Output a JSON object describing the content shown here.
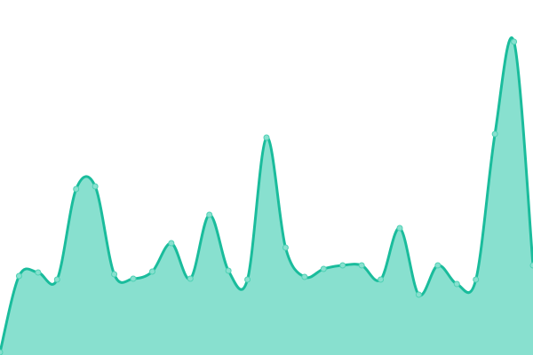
{
  "chart_data": {
    "type": "area",
    "title": "",
    "xlabel": "",
    "ylabel": "",
    "grid": false,
    "legend": "none",
    "x": [
      0,
      1,
      2,
      3,
      4,
      5,
      6,
      7,
      8,
      9,
      10,
      11,
      12,
      13,
      14,
      15,
      16,
      17,
      18,
      19,
      20,
      21,
      22,
      23,
      24,
      25,
      26,
      27,
      28
    ],
    "ylim": [
      0,
      400
    ],
    "series": [
      {
        "values": [
          3,
          89,
          93,
          85,
          187,
          190,
          91,
          86,
          94,
          126,
          86,
          158,
          95,
          85,
          245,
          121,
          88,
          97,
          101,
          101,
          85,
          143,
          68,
          101,
          80,
          85,
          249,
          353,
          101
        ]
      }
    ],
    "colors": {
      "line": "#1abc9c",
      "fill": "#88e0cf",
      "marker_fill": "#88e0cf",
      "marker_stroke": "#4fd1b4"
    }
  }
}
